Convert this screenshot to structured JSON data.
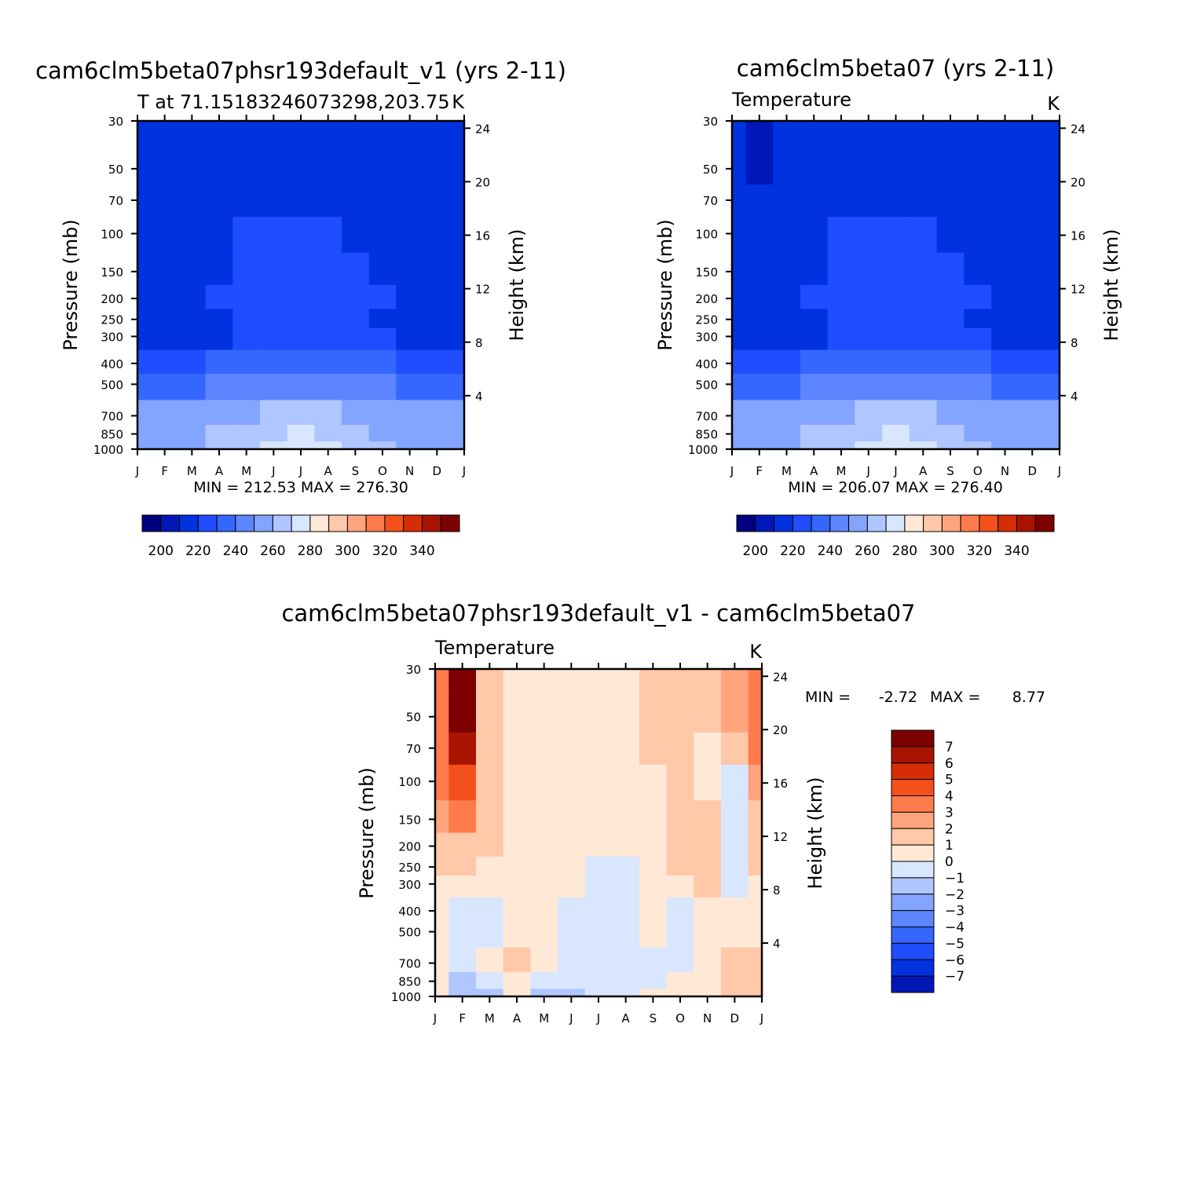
{
  "chart_data": [
    {
      "type": "heatmap",
      "title": "cam6clm5beta07phsr193default_v1 (yrs 2-11)",
      "subtitle_left": "T at 71.15183246073298,203.75",
      "subtitle_right": "K",
      "ylabel": "Pressure (mb)",
      "ylabel_right": "Height (km)",
      "x_ticks": [
        "J",
        "F",
        "M",
        "A",
        "M",
        "J",
        "J",
        "A",
        "S",
        "O",
        "N",
        "D",
        "J"
      ],
      "y_ticks": [
        "30",
        "50",
        "70",
        "100",
        "150",
        "200",
        "250",
        "300",
        "400",
        "500",
        "700",
        "850",
        "1000"
      ],
      "y_right_ticks": [
        "24",
        "20",
        "16",
        "12",
        "8",
        "4"
      ],
      "min_max": "MIN = 212.53 MAX = 276.30",
      "colorbar_labels": [
        "200",
        "220",
        "240",
        "260",
        "280",
        "300",
        "320",
        "340"
      ],
      "z_values_K": [
        [
          215,
          216,
          218,
          219,
          219,
          219,
          219,
          219,
          217,
          216,
          215,
          215,
          215
        ],
        [
          216,
          217,
          218,
          219,
          219,
          219,
          219,
          219,
          218,
          217,
          216,
          216,
          216
        ],
        [
          216,
          217,
          218,
          219,
          219,
          219,
          219,
          219,
          218,
          217,
          216,
          216,
          216
        ],
        [
          216,
          217,
          218,
          219,
          220,
          220,
          220,
          220,
          219,
          218,
          217,
          216,
          216
        ],
        [
          216,
          217,
          218,
          219,
          220,
          221,
          221,
          221,
          220,
          219,
          217,
          216,
          216
        ],
        [
          216,
          217,
          218,
          220,
          221,
          222,
          222,
          222,
          221,
          220,
          218,
          217,
          216
        ],
        [
          216,
          217,
          218,
          219,
          221,
          222,
          222,
          222,
          221,
          219,
          218,
          217,
          216
        ],
        [
          217,
          217,
          218,
          219,
          221,
          222,
          223,
          222,
          221,
          220,
          218,
          217,
          217
        ],
        [
          228,
          228,
          229,
          231,
          234,
          236,
          237,
          236,
          233,
          231,
          229,
          228,
          228
        ],
        [
          238,
          238,
          239,
          241,
          244,
          247,
          248,
          247,
          244,
          241,
          239,
          238,
          238
        ],
        [
          252,
          252,
          253,
          256,
          259,
          262,
          264,
          262,
          258,
          255,
          253,
          252,
          252
        ],
        [
          256,
          256,
          258,
          261,
          265,
          268,
          270,
          268,
          264,
          259,
          257,
          256,
          256
        ],
        [
          256,
          257,
          259,
          262,
          268,
          272,
          276,
          274,
          267,
          261,
          258,
          257,
          256
        ]
      ]
    },
    {
      "type": "heatmap",
      "title": "cam6clm5beta07 (yrs 2-11)",
      "subtitle_left": "Temperature",
      "subtitle_right": "K",
      "ylabel": "Pressure (mb)",
      "ylabel_right": "Height (km)",
      "x_ticks": [
        "J",
        "F",
        "M",
        "A",
        "M",
        "J",
        "J",
        "A",
        "S",
        "O",
        "N",
        "D",
        "J"
      ],
      "y_ticks": [
        "30",
        "50",
        "70",
        "100",
        "150",
        "200",
        "250",
        "300",
        "400",
        "500",
        "700",
        "850",
        "1000"
      ],
      "y_right_ticks": [
        "24",
        "20",
        "16",
        "12",
        "8",
        "4"
      ],
      "min_max": "MIN = 206.07 MAX = 276.40",
      "colorbar_labels": [
        "200",
        "220",
        "240",
        "260",
        "280",
        "300",
        "320",
        "340"
      ],
      "z_values_K": [
        [
          213,
          208,
          216,
          219,
          219,
          219,
          219,
          219,
          217,
          216,
          215,
          214,
          213
        ],
        [
          214,
          209,
          216,
          219,
          219,
          219,
          219,
          219,
          218,
          217,
          216,
          215,
          214
        ],
        [
          215,
          210,
          217,
          219,
          219,
          219,
          219,
          219,
          218,
          217,
          216,
          215,
          215
        ],
        [
          215,
          213,
          217,
          219,
          220,
          220,
          220,
          220,
          219,
          218,
          217,
          216,
          215
        ],
        [
          215,
          215,
          217,
          219,
          220,
          221,
          221,
          221,
          220,
          219,
          217,
          216,
          215
        ],
        [
          216,
          216,
          218,
          220,
          221,
          222,
          222,
          222,
          221,
          220,
          218,
          217,
          216
        ],
        [
          216,
          216,
          218,
          219,
          221,
          222,
          222,
          222,
          221,
          219,
          218,
          217,
          216
        ],
        [
          217,
          217,
          218,
          219,
          221,
          222,
          223,
          222,
          221,
          220,
          218,
          217,
          217
        ],
        [
          228,
          228,
          229,
          231,
          234,
          236,
          237,
          236,
          233,
          231,
          229,
          228,
          228
        ],
        [
          238,
          238,
          239,
          241,
          244,
          247,
          248,
          247,
          244,
          241,
          239,
          238,
          238
        ],
        [
          252,
          252,
          253,
          256,
          259,
          262,
          264,
          262,
          258,
          255,
          253,
          252,
          252
        ],
        [
          256,
          256,
          258,
          261,
          265,
          268,
          270,
          268,
          264,
          259,
          257,
          256,
          256
        ],
        [
          256,
          257,
          259,
          262,
          268,
          272,
          276,
          274,
          267,
          261,
          258,
          257,
          256
        ]
      ]
    },
    {
      "type": "heatmap",
      "title": "cam6clm5beta07phsr193default_v1 - cam6clm5beta07",
      "subtitle_left": "Temperature",
      "subtitle_right": "K",
      "ylabel": "Pressure (mb)",
      "ylabel_right": "Height (km)",
      "x_ticks": [
        "J",
        "F",
        "M",
        "A",
        "M",
        "J",
        "J",
        "A",
        "S",
        "O",
        "N",
        "D",
        "J"
      ],
      "y_ticks": [
        "30",
        "50",
        "70",
        "100",
        "150",
        "200",
        "250",
        "300",
        "400",
        "500",
        "700",
        "850",
        "1000"
      ],
      "y_right_ticks": [
        "24",
        "20",
        "16",
        "12",
        "8",
        "4"
      ],
      "min_label": "MIN =",
      "min_value": "-2.72",
      "max_label": "MAX =",
      "max_value": "8.77",
      "colorbar_labels": [
        "7",
        "6",
        "5",
        "4",
        "3",
        "2",
        "1",
        "0",
        "−1",
        "−2",
        "−3",
        "−4",
        "−5",
        "−6",
        "−7"
      ],
      "z_values_K": [
        [
          3.5,
          8.5,
          1.5,
          0.5,
          0.5,
          0.5,
          0.5,
          0.5,
          1.5,
          1.5,
          1.5,
          2.5,
          3.5
        ],
        [
          3.0,
          7.5,
          1.5,
          0.5,
          0.5,
          0.5,
          0.5,
          0.5,
          1.5,
          1.5,
          1.5,
          2.0,
          3.0
        ],
        [
          3.0,
          6.5,
          1.0,
          0.5,
          0.5,
          0.5,
          0.5,
          0.5,
          1.0,
          1.5,
          0.5,
          1.5,
          3.0
        ],
        [
          3.0,
          4.5,
          1.5,
          0.5,
          0.5,
          0.5,
          0.5,
          0.5,
          0.5,
          1.5,
          0.5,
          -0.5,
          2.0
        ],
        [
          2.5,
          3.5,
          1.5,
          0.5,
          0.5,
          0.5,
          0.5,
          0.5,
          0.5,
          1.5,
          1.5,
          -0.5,
          1.5
        ],
        [
          1.5,
          1.5,
          1.5,
          0.5,
          0.5,
          0.5,
          0.5,
          0.5,
          0.5,
          1.5,
          1.5,
          -0.5,
          1.5
        ],
        [
          1.0,
          1.0,
          0.5,
          0.5,
          0.5,
          0.5,
          -0.5,
          -0.5,
          0.5,
          1.0,
          1.5,
          -0.5,
          1.0
        ],
        [
          0.5,
          0.5,
          0.5,
          0.5,
          0.5,
          0.5,
          -0.5,
          -0.5,
          0.5,
          0.5,
          1.5,
          -0.5,
          0.5
        ],
        [
          0.5,
          -0.5,
          -0.5,
          0.5,
          0.5,
          -0.5,
          -0.5,
          -0.5,
          0.5,
          -0.5,
          0.5,
          0.5,
          0.5
        ],
        [
          0.5,
          -0.5,
          -0.5,
          0.5,
          0.5,
          -0.5,
          -0.5,
          -0.5,
          0.5,
          -0.5,
          0.5,
          0.5,
          0.5
        ],
        [
          0.5,
          -0.5,
          0.5,
          1.5,
          0.5,
          -0.5,
          -0.5,
          -0.5,
          -0.5,
          -0.5,
          0.5,
          1.5,
          1.5
        ],
        [
          0.5,
          -1.5,
          -0.5,
          0.5,
          -0.5,
          -0.5,
          -0.5,
          -0.5,
          -0.5,
          0.5,
          0.5,
          1.5,
          1.5
        ],
        [
          0.5,
          -1.5,
          -1.5,
          0.5,
          -1.5,
          -1.5,
          -0.5,
          -0.5,
          0.5,
          0.5,
          0.5,
          1.5,
          1.5
        ]
      ]
    }
  ],
  "colors": {
    "abs_palette": [
      "#000080",
      "#0018b8",
      "#0032e0",
      "#1f4dff",
      "#3567ff",
      "#5c85ff",
      "#84a5ff",
      "#b0c6ff",
      "#d8e6ff",
      "#ffe8d6",
      "#ffc8a8",
      "#ffa47c",
      "#ff7b4c",
      "#f4501c",
      "#d52d06",
      "#a81400",
      "#7c0000"
    ],
    "diff_palette": [
      "#000080",
      "#0018b8",
      "#0032e0",
      "#1f4dff",
      "#3567ff",
      "#5c85ff",
      "#84a5ff",
      "#b0c6ff",
      "#d8e6ff",
      "#ffe8d6",
      "#ffc8a8",
      "#ffa47c",
      "#ff7b4c",
      "#f4501c",
      "#d52d06",
      "#a81400",
      "#7c0000"
    ]
  }
}
